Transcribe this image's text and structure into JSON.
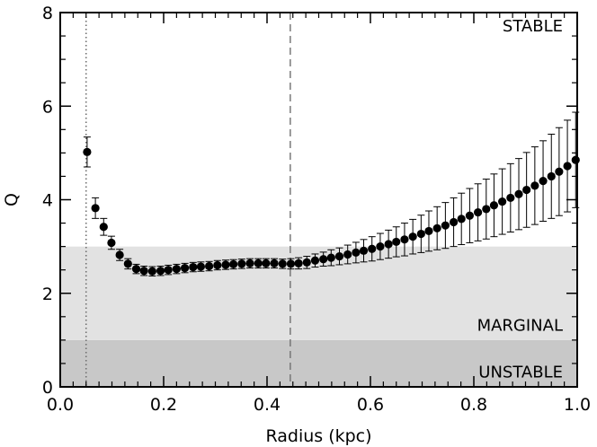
{
  "chart_data": {
    "type": "scatter",
    "xlabel": "Radius (kpc)",
    "ylabel": "Q",
    "xlim": [
      0.0,
      1.0
    ],
    "ylim": [
      0,
      8
    ],
    "x_ticks": [
      "0.0",
      "0.2",
      "0.4",
      "0.6",
      "0.8",
      "1.0"
    ],
    "y_ticks": [
      "0",
      "2",
      "4",
      "6",
      "8"
    ],
    "grid": false,
    "regions": [
      {
        "label": "UNSTABLE",
        "y0": 0,
        "y1": 1,
        "color": "#c8c8c8"
      },
      {
        "label": "MARGINAL",
        "y0": 1,
        "y1": 3,
        "color": "#e2e2e2"
      },
      {
        "label": "STABLE",
        "y0": 3,
        "y1": 8,
        "color": "#ffffff"
      }
    ],
    "vlines": [
      {
        "x": 0.05,
        "style": "dotted",
        "color": "#707070"
      },
      {
        "x": 0.445,
        "style": "dashed",
        "color": "#707070"
      }
    ],
    "series": [
      {
        "x": [
          0.052,
          0.068,
          0.084,
          0.099,
          0.115,
          0.131,
          0.147,
          0.162,
          0.178,
          0.194,
          0.209,
          0.225,
          0.241,
          0.257,
          0.272,
          0.288,
          0.304,
          0.32,
          0.335,
          0.351,
          0.367,
          0.383,
          0.398,
          0.414,
          0.43,
          0.446,
          0.461,
          0.477,
          0.493,
          0.509,
          0.524,
          0.54,
          0.556,
          0.572,
          0.587,
          0.603,
          0.619,
          0.635,
          0.65,
          0.666,
          0.682,
          0.698,
          0.713,
          0.729,
          0.745,
          0.761,
          0.776,
          0.792,
          0.808,
          0.824,
          0.839,
          0.855,
          0.871,
          0.887,
          0.902,
          0.918,
          0.934,
          0.95,
          0.965,
          0.981,
          0.997
        ],
        "y": [
          5.02,
          3.82,
          3.42,
          3.08,
          2.82,
          2.63,
          2.52,
          2.48,
          2.47,
          2.48,
          2.5,
          2.52,
          2.54,
          2.56,
          2.57,
          2.58,
          2.6,
          2.61,
          2.62,
          2.63,
          2.64,
          2.64,
          2.64,
          2.64,
          2.63,
          2.63,
          2.64,
          2.66,
          2.7,
          2.73,
          2.76,
          2.79,
          2.83,
          2.87,
          2.91,
          2.95,
          3.0,
          3.05,
          3.1,
          3.15,
          3.21,
          3.27,
          3.33,
          3.39,
          3.45,
          3.52,
          3.59,
          3.66,
          3.73,
          3.8,
          3.88,
          3.96,
          4.04,
          4.12,
          4.21,
          4.3,
          4.4,
          4.5,
          4.6,
          4.72,
          4.85
        ],
        "yerr": [
          0.32,
          0.22,
          0.18,
          0.14,
          0.12,
          0.11,
          0.1,
          0.1,
          0.1,
          0.1,
          0.1,
          0.1,
          0.1,
          0.1,
          0.1,
          0.1,
          0.1,
          0.1,
          0.1,
          0.1,
          0.1,
          0.1,
          0.1,
          0.1,
          0.1,
          0.11,
          0.12,
          0.13,
          0.14,
          0.15,
          0.17,
          0.18,
          0.2,
          0.22,
          0.24,
          0.26,
          0.28,
          0.3,
          0.32,
          0.35,
          0.37,
          0.4,
          0.43,
          0.46,
          0.49,
          0.52,
          0.55,
          0.58,
          0.61,
          0.64,
          0.67,
          0.7,
          0.73,
          0.76,
          0.8,
          0.83,
          0.86,
          0.9,
          0.94,
          0.98,
          1.02
        ]
      }
    ]
  }
}
